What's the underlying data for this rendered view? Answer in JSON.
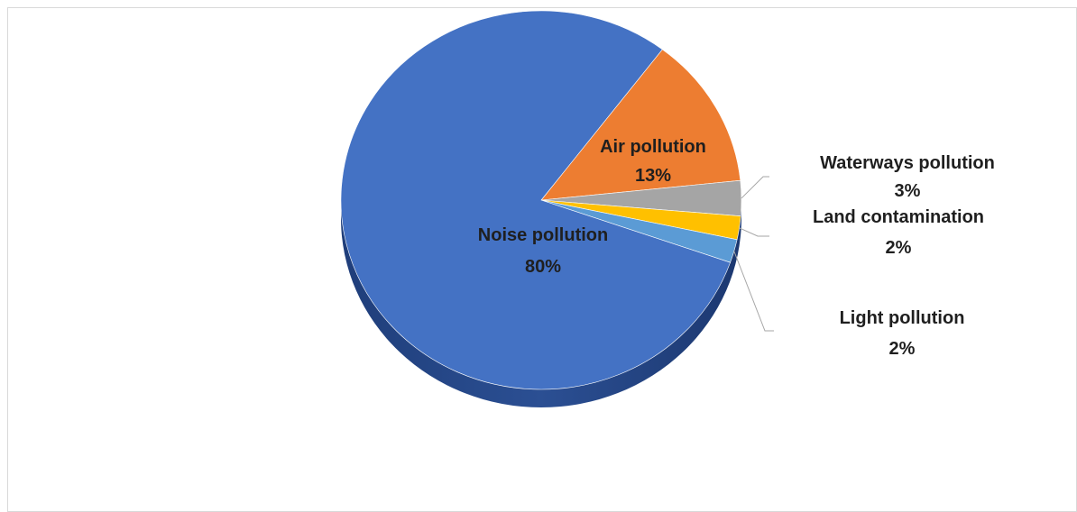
{
  "chart_data": {
    "type": "pie",
    "style": "3d",
    "title": "",
    "slices": [
      {
        "name": "Noise pollution",
        "value": 80,
        "label": "80%",
        "color": "#4472c4"
      },
      {
        "name": "Air pollution",
        "value": 13,
        "label": "13%",
        "color": "#ed7d31"
      },
      {
        "name": "Waterways pollution",
        "value": 3,
        "label": "3%",
        "color": "#a5a5a5"
      },
      {
        "name": "Land contamination",
        "value": 2,
        "label": "2%",
        "color": "#ffc000"
      },
      {
        "name": "Light pollution",
        "value": 2,
        "label": "2%",
        "color": "#5b9bd5"
      }
    ],
    "legend": "none",
    "data_labels": "category name and percentage"
  }
}
